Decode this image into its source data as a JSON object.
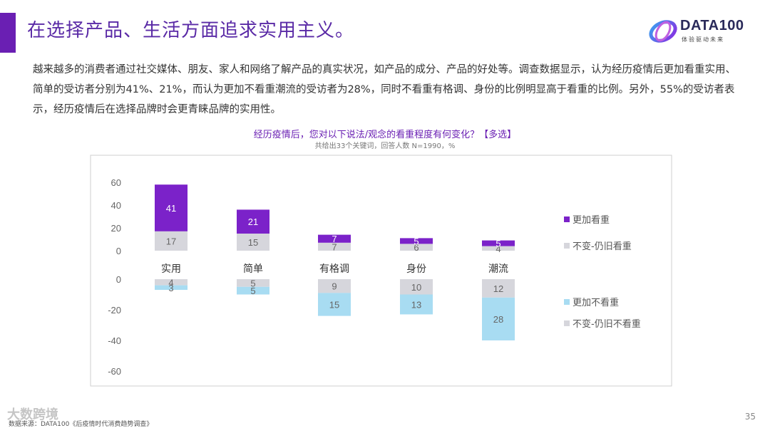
{
  "header": {
    "title": "在选择产品、生活方面追求实用主义。",
    "logo_text": "DATA100",
    "logo_sub": "体验驱动未来"
  },
  "intro": "越来越多的消费者通过社交媒体、朋友、家人和网络了解产品的真实状况，如产品的成分、产品的好处等。调查数据显示，认为经历疫情后更加看重实用、简单的受访者分别为41%、21%，而认为更加不看重潮流的受访者为28%，同时不看重有格调、身份的比例明显高于看重的比例。另外，55%的受访者表示，经历疫情后在选择品牌时会更青睐品牌的实用性。",
  "footer": {
    "page_number": "35",
    "source": "数据来源：DATA100《后疫情时代消费趋势调查》",
    "watermark": "大数跨境"
  },
  "colors": {
    "accent": "#6a1fb3",
    "more_important": "#7b22c9",
    "unchanged_important": "#d6d6dc",
    "less_important": "#a8dcf2",
    "unchanged_less": "#d6d6dc"
  },
  "chart_data": {
    "type": "bar",
    "title": "经历疫情后，您对以下说法/观念的看重程度有何变化？【多选】",
    "subtitle": "共给出33个关键词，回答人数 N=1990，%",
    "categories": [
      "实用",
      "简单",
      "有格调",
      "身份",
      "潮流"
    ],
    "top_panel": {
      "ylim": [
        0,
        60
      ],
      "ticks": [
        0,
        20,
        40,
        60
      ],
      "series": [
        {
          "name": "不变-仍旧看重",
          "values": [
            17,
            15,
            7,
            6,
            4
          ]
        },
        {
          "name": "更加看重",
          "values": [
            41,
            21,
            7,
            5,
            5
          ]
        }
      ]
    },
    "bottom_panel": {
      "ylim": [
        -60,
        0
      ],
      "ticks": [
        0,
        -20,
        -40,
        -60
      ],
      "series": [
        {
          "name": "不变-仍旧不看重",
          "values": [
            4,
            5,
            9,
            10,
            12
          ]
        },
        {
          "name": "更加不看重",
          "values": [
            3,
            5,
            15,
            13,
            28
          ]
        }
      ]
    },
    "legend": [
      "更加看重",
      "不变-仍旧看重",
      "更加不看重",
      "不变-仍旧不看重"
    ],
    "legend_position": "right"
  }
}
